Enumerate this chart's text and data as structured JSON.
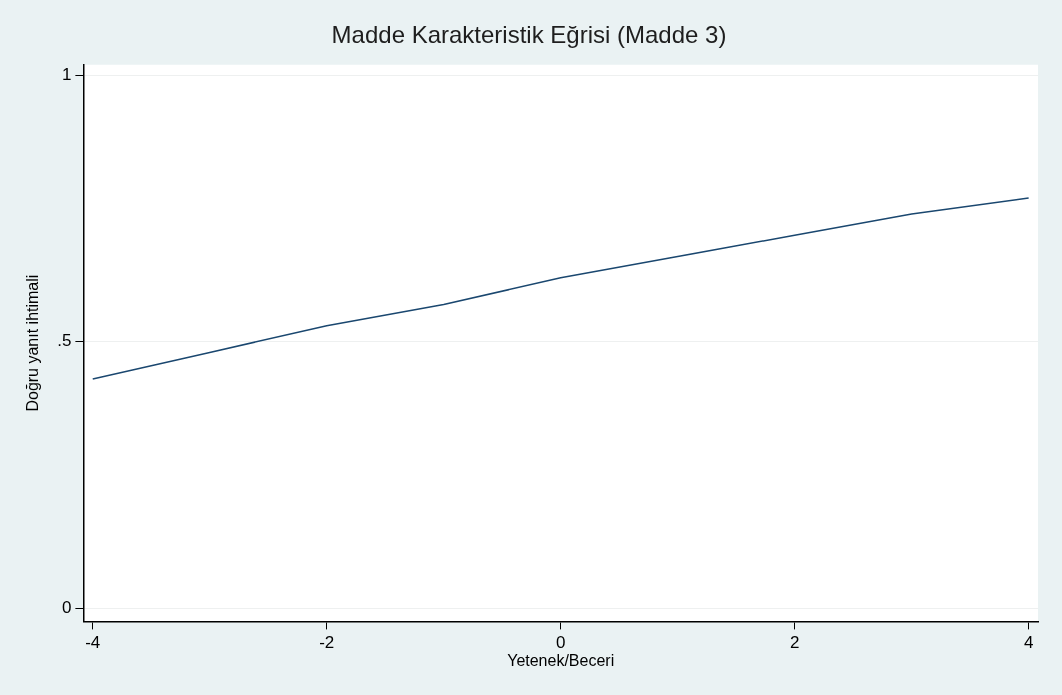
{
  "chart_data": {
    "type": "line",
    "title": "Madde Karakteristik Eğrisi (Madde 3)",
    "xlabel": "Yetenek/Beceri",
    "ylabel": "Doğru yanıt ihtimali",
    "x": [
      -4,
      -3,
      -2,
      -1,
      0,
      1,
      2,
      3,
      4
    ],
    "series": [
      {
        "color": "#1a476f",
        "values": [
          0.43,
          0.48,
          0.53,
          0.57,
          0.62,
          0.66,
          0.7,
          0.74,
          0.77
        ]
      }
    ],
    "xlim": [
      -4.08,
      4.08
    ],
    "xticks": [
      -4,
      -2,
      0,
      2,
      4
    ],
    "ylim": [
      -0.025,
      1.02
    ],
    "yticks": [
      0,
      {
        "value": 0.5,
        "label": ".5"
      },
      1
    ],
    "grid": "y",
    "legend": false,
    "marker": "none",
    "line_style": "solid"
  }
}
